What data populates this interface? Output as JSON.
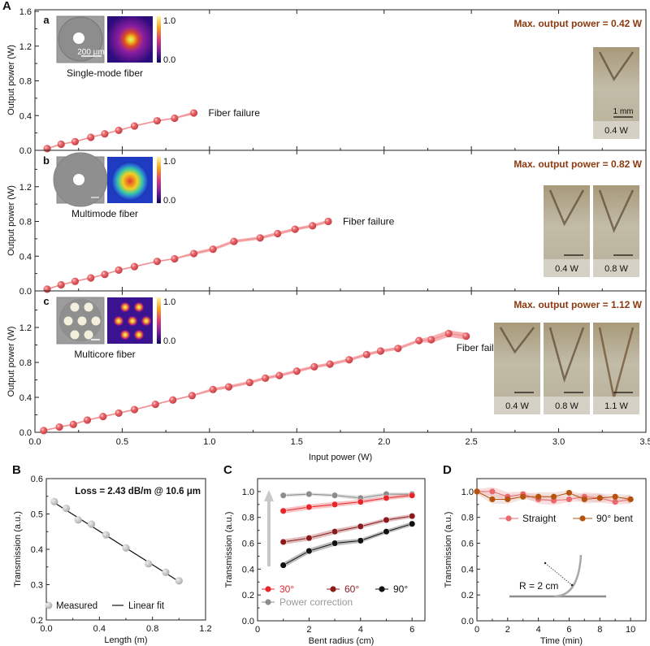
{
  "chart_data": [
    {
      "id": "A",
      "panel_label": "A",
      "type": "line",
      "xlabel": "Input power (W)",
      "ylabel": "Output power (W)",
      "xlim": [
        0,
        3.5
      ],
      "xticks": [
        "0.0",
        "0.5",
        "1.0",
        "1.5",
        "2.0",
        "2.5",
        "3.0",
        "3.5"
      ],
      "ylim": [
        0,
        1.6
      ],
      "yticks": [
        "0.0",
        "0.4",
        "0.8",
        "1.2",
        "1.6"
      ],
      "subplots": [
        {
          "label": "a",
          "fiber": "Single-mode fiber",
          "scale_label": "200 μm",
          "colorbar": [
            "1.0",
            "0.0"
          ],
          "max_text": "Max. output power = 0.42 W",
          "failure_text": "Fiber failure",
          "photo_scale_label": "1 mm",
          "photos": [
            "0.4 W"
          ],
          "x": [
            0.07,
            0.15,
            0.23,
            0.32,
            0.4,
            0.48,
            0.57,
            0.7,
            0.8,
            0.91
          ],
          "y": [
            0.02,
            0.07,
            0.1,
            0.15,
            0.19,
            0.23,
            0.28,
            0.34,
            0.37,
            0.43
          ]
        },
        {
          "label": "b",
          "fiber": "Multimode fiber",
          "colorbar": [
            "1.0",
            "0.0"
          ],
          "max_text": "Max. output power = 0.82 W",
          "failure_text": "Fiber failure",
          "photos": [
            "0.4 W",
            "0.8 W"
          ],
          "x": [
            0.07,
            0.15,
            0.23,
            0.32,
            0.4,
            0.48,
            0.57,
            0.7,
            0.8,
            0.91,
            1.02,
            1.14,
            1.29,
            1.39,
            1.49,
            1.59,
            1.68
          ],
          "y": [
            0.02,
            0.07,
            0.11,
            0.15,
            0.19,
            0.24,
            0.28,
            0.34,
            0.37,
            0.43,
            0.48,
            0.57,
            0.61,
            0.66,
            0.71,
            0.75,
            0.8
          ]
        },
        {
          "label": "c",
          "fiber": "Multicore fiber",
          "colorbar": [
            "1.0",
            "0.0"
          ],
          "max_text": "Max. output power = 1.12 W",
          "failure_text": "Fiber failure",
          "photos": [
            "0.4 W",
            "0.8 W",
            "1.1 W"
          ],
          "x": [
            0.05,
            0.14,
            0.22,
            0.3,
            0.39,
            0.48,
            0.57,
            0.69,
            0.79,
            0.9,
            1.02,
            1.11,
            1.23,
            1.32,
            1.4,
            1.5,
            1.6,
            1.69,
            1.8,
            1.9,
            1.98,
            2.08,
            2.2,
            2.27,
            2.37,
            2.47
          ],
          "y": [
            0.02,
            0.06,
            0.09,
            0.14,
            0.18,
            0.22,
            0.26,
            0.32,
            0.37,
            0.42,
            0.49,
            0.52,
            0.57,
            0.62,
            0.65,
            0.7,
            0.75,
            0.78,
            0.83,
            0.89,
            0.93,
            0.96,
            1.05,
            1.06,
            1.13,
            1.1
          ]
        }
      ]
    },
    {
      "id": "B",
      "panel_label": "B",
      "type": "scatter",
      "xlabel": "Length (m)",
      "ylabel": "Transmission (a.u.)",
      "xlim": [
        0,
        1.2
      ],
      "xticks": [
        "0.0",
        "0.4",
        "0.8",
        "1.2"
      ],
      "ylim": [
        0.2,
        0.6
      ],
      "yticks": [
        "0.2",
        "0.3",
        "0.4",
        "0.5",
        "0.6"
      ],
      "annotation": "Loss = 2.43 dB/m @ 10.6 μm",
      "legend": [
        "Measured",
        "Linear fit"
      ],
      "legend_position": "bottom",
      "x": [
        0.06,
        0.15,
        0.24,
        0.34,
        0.45,
        0.6,
        0.77,
        0.9,
        1.0
      ],
      "y": [
        0.535,
        0.516,
        0.483,
        0.471,
        0.441,
        0.404,
        0.359,
        0.335,
        0.311
      ],
      "fit": {
        "x": [
          0.06,
          1.0
        ],
        "y": [
          0.532,
          0.309
        ]
      }
    },
    {
      "id": "C",
      "panel_label": "C",
      "type": "line",
      "xlabel": "Bent radius (cm)",
      "ylabel": "Transmission (a.u.)",
      "xlim": [
        0,
        6.5
      ],
      "xticks": [
        "0",
        "2",
        "4",
        "6"
      ],
      "ylim": [
        0,
        1.1
      ],
      "yticks": [
        "0.0",
        "0.2",
        "0.4",
        "0.6",
        "0.8",
        "1.0"
      ],
      "x": [
        1,
        2,
        3,
        4,
        5,
        6
      ],
      "series": [
        {
          "name": "30°",
          "color": "#e8262a",
          "values": [
            0.85,
            0.88,
            0.9,
            0.92,
            0.95,
            0.97
          ]
        },
        {
          "name": "60°",
          "color": "#8b1a1a",
          "values": [
            0.61,
            0.64,
            0.69,
            0.73,
            0.78,
            0.81
          ]
        },
        {
          "name": "90°",
          "color": "#111111",
          "values": [
            0.43,
            0.54,
            0.6,
            0.62,
            0.69,
            0.75
          ]
        },
        {
          "name": "Power correction",
          "color": "#8c8c8c",
          "values": [
            0.97,
            0.98,
            0.97,
            0.95,
            0.98,
            0.98
          ]
        }
      ],
      "legend_position": "bottom"
    },
    {
      "id": "D",
      "panel_label": "D",
      "type": "line",
      "xlabel": "Time (min)",
      "ylabel": "Transmission (a.u.)",
      "xlim": [
        0,
        11
      ],
      "xticks": [
        "0",
        "2",
        "4",
        "6",
        "8",
        "10"
      ],
      "ylim": [
        0,
        1.1
      ],
      "yticks": [
        "0.0",
        "0.2",
        "0.4",
        "0.6",
        "0.8",
        "1.0"
      ],
      "x": [
        0,
        1,
        2,
        3,
        4,
        5,
        6,
        7,
        8,
        9,
        10
      ],
      "series": [
        {
          "name": "Straight",
          "color": "#e9696e",
          "values": [
            1.0,
            1.0,
            0.96,
            0.98,
            0.94,
            0.93,
            0.94,
            0.96,
            0.95,
            0.92,
            0.94
          ]
        },
        {
          "name": "90° bent",
          "color": "#b5530d",
          "values": [
            1.0,
            0.94,
            0.94,
            0.96,
            0.96,
            0.96,
            0.99,
            0.94,
            0.95,
            0.96,
            0.94
          ]
        }
      ],
      "inset_label": "R = 2 cm",
      "legend_position": "top"
    }
  ]
}
